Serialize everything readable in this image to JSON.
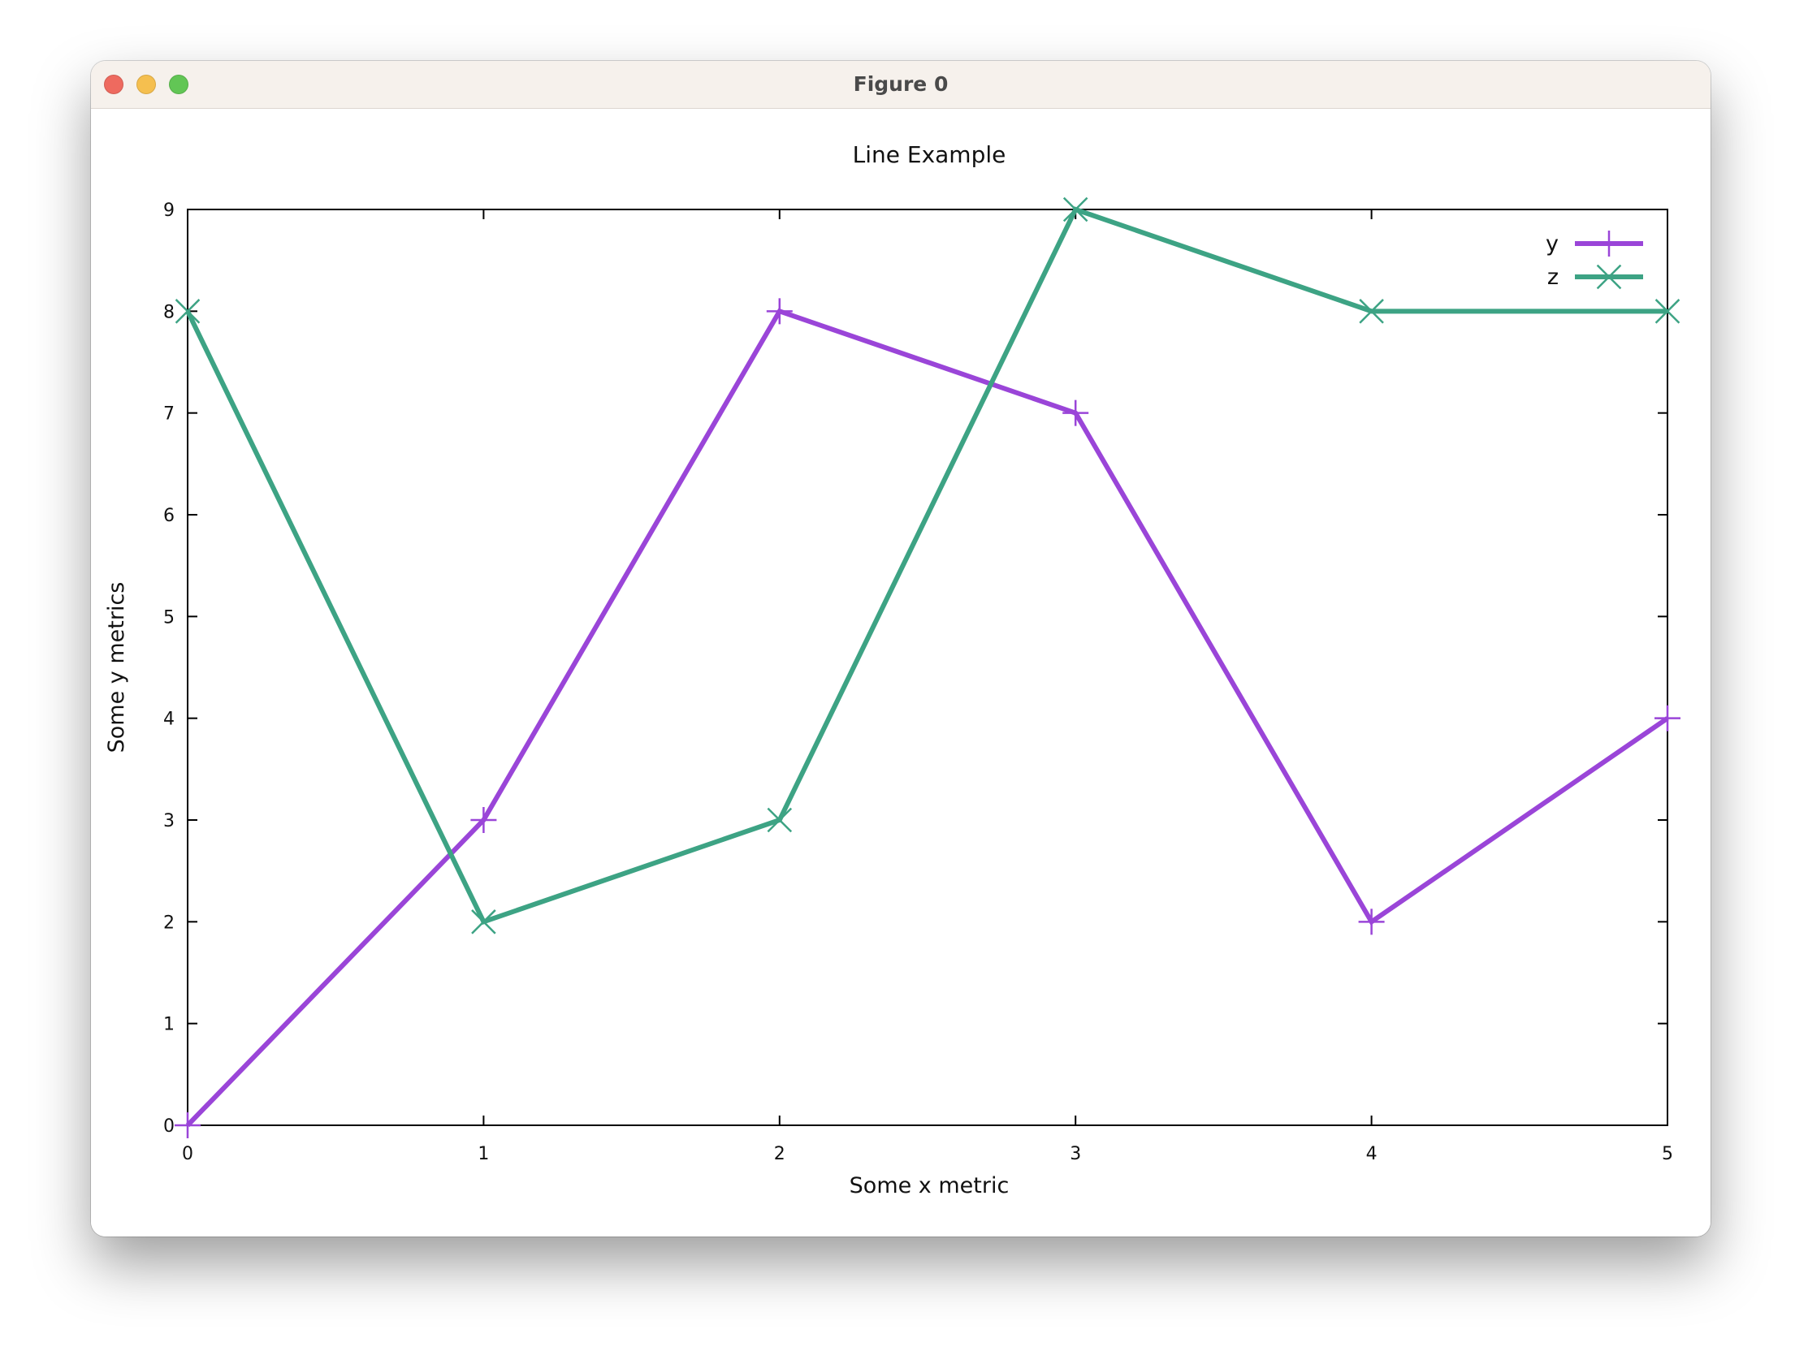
{
  "window": {
    "title": "Figure 0"
  },
  "chart_data": {
    "type": "line",
    "title": "Line Example",
    "xlabel": "Some x metric",
    "ylabel": "Some y metrics",
    "x": [
      0,
      1,
      2,
      3,
      4,
      5
    ],
    "xlim": [
      0,
      5
    ],
    "ylim": [
      0,
      9
    ],
    "xticks": [
      "0",
      "1",
      "2",
      "3",
      "4",
      "5"
    ],
    "yticks": [
      "0",
      "1",
      "2",
      "3",
      "4",
      "5",
      "6",
      "7",
      "8",
      "9"
    ],
    "grid": false,
    "legend_position": "top-right",
    "series": [
      {
        "name": "y",
        "values": [
          0,
          3,
          8,
          7,
          2,
          4
        ],
        "color": "#9a45d8",
        "marker": "plus"
      },
      {
        "name": "z",
        "values": [
          8,
          2,
          3,
          9,
          8,
          8
        ],
        "color": "#3da384",
        "marker": "cross"
      }
    ]
  }
}
